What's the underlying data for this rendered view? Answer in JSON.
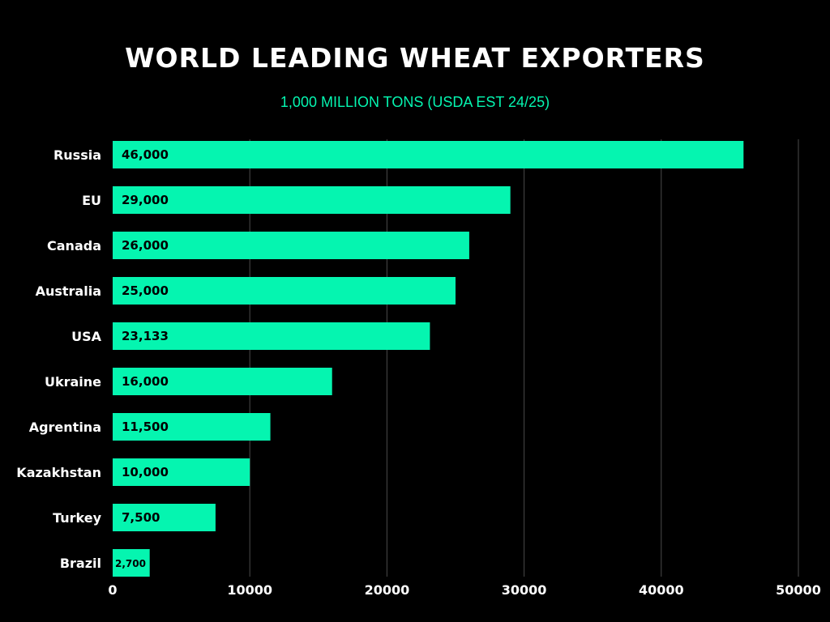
{
  "title": "WORLD LEADING WHEAT EXPORTERS",
  "subtitle": "1,000 MILLION TONS (USDA EST 24/25)",
  "colors": {
    "background": "#000000",
    "bar": "#05f5b0",
    "title": "#ffffff",
    "subtitle": "#05f5b0",
    "grid": "#4a4a4a",
    "category_label": "#ffffff",
    "value_label": "#000000"
  },
  "chart_data": {
    "type": "bar",
    "orientation": "horizontal",
    "title": "WORLD LEADING WHEAT EXPORTERS",
    "subtitle": "1,000 MILLION TONS (USDA EST 24/25)",
    "categories": [
      "Russia",
      "EU",
      "Canada",
      "Australia",
      "USA",
      "Ukraine",
      "Agrentina",
      "Kazakhstan",
      "Turkey",
      "Brazil"
    ],
    "values": [
      46000,
      29000,
      26000,
      25000,
      23133,
      16000,
      11500,
      10000,
      7500,
      2700
    ],
    "data_labels": [
      "46,000",
      "29,000",
      "26,000",
      "25,000",
      "23,133",
      "16,000",
      "11,500",
      "10,000",
      "7,500",
      "2,700"
    ],
    "xlim": [
      0,
      50000
    ],
    "xticks": [
      0,
      10000,
      20000,
      30000,
      40000,
      50000
    ],
    "xtick_labels": [
      "0",
      "10000",
      "20000",
      "30000",
      "40000",
      "50000"
    ],
    "xlabel": "",
    "ylabel": "",
    "grid": true,
    "legend": "none"
  }
}
